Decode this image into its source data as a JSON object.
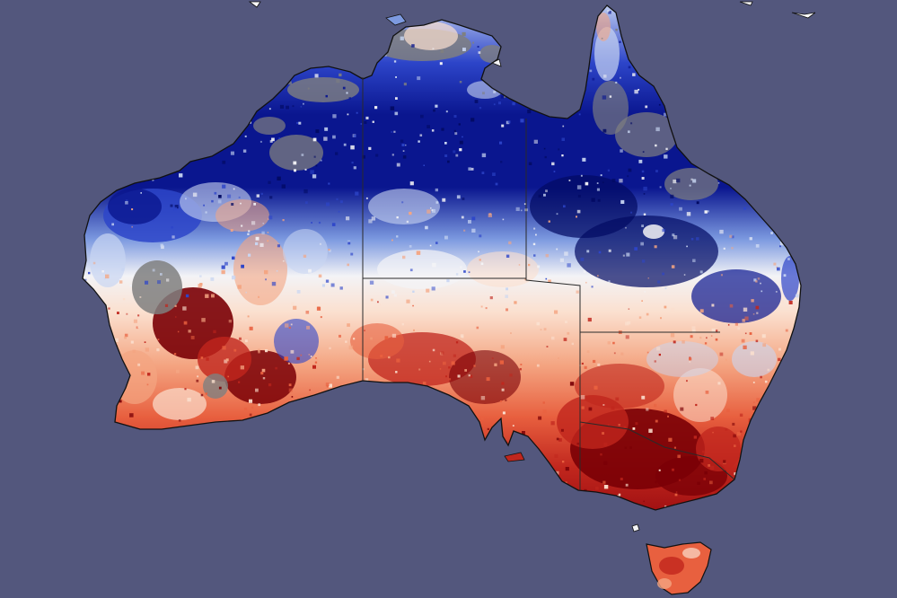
{
  "map": {
    "ocean_color": "#53577d",
    "nodata_color": "#7f7f7f",
    "coast_color": "#111111",
    "border_color": "#2a2a2a",
    "palette": {
      "dark_red": "#7a0006",
      "red": "#c0261d",
      "orange_red": "#e8603f",
      "salmon": "#f4a582",
      "pale": "#fbe0cf",
      "white": "#f3f3f6",
      "light_blue": "#c9d6f2",
      "blue": "#7d9ae0",
      "mid_blue": "#2d45c9",
      "navy": "#0a168f",
      "dark_navy": "#020a63"
    }
  }
}
